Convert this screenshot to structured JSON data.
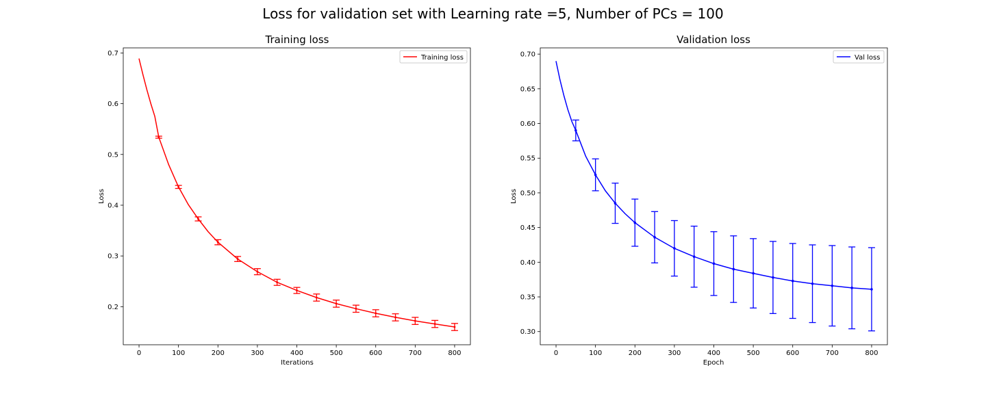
{
  "figure": {
    "suptitle": "Loss for validation set with Learning rate =5, Number of PCs = 100"
  },
  "chart_data": [
    {
      "type": "line",
      "title": "Training loss",
      "xlabel": "Iterations",
      "ylabel": "Loss",
      "xlim": [
        -40,
        840
      ],
      "ylim": [
        0.125,
        0.71
      ],
      "xticks": [
        0,
        100,
        200,
        300,
        400,
        500,
        600,
        700,
        800
      ],
      "yticks": [
        0.2,
        0.3,
        0.4,
        0.5,
        0.6,
        0.7
      ],
      "ytick_labels": [
        "0.2",
        "0.3",
        "0.4",
        "0.5",
        "0.6",
        "0.7"
      ],
      "grid": false,
      "legend": "top-right",
      "curve": {
        "x": [
          0,
          10,
          20,
          30,
          40,
          50,
          75,
          100,
          125,
          150,
          175,
          200,
          250,
          300,
          350,
          400,
          450,
          500,
          550,
          600,
          650,
          700,
          750,
          800
        ],
        "y": [
          0.689,
          0.657,
          0.627,
          0.6,
          0.575,
          0.534,
          0.48,
          0.436,
          0.401,
          0.373,
          0.348,
          0.327,
          0.294,
          0.269,
          0.248,
          0.232,
          0.218,
          0.206,
          0.196,
          0.187,
          0.179,
          0.172,
          0.166,
          0.16
        ]
      },
      "series": [
        {
          "name": "Training loss",
          "color": "#ff0000",
          "x": [
            50,
            100,
            150,
            200,
            250,
            300,
            350,
            400,
            450,
            500,
            550,
            600,
            650,
            700,
            750,
            800
          ],
          "y": [
            0.534,
            0.436,
            0.373,
            0.327,
            0.294,
            0.269,
            0.248,
            0.232,
            0.218,
            0.206,
            0.196,
            0.187,
            0.179,
            0.172,
            0.166,
            0.16
          ],
          "err": [
            0.002,
            0.003,
            0.004,
            0.005,
            0.005,
            0.006,
            0.006,
            0.006,
            0.007,
            0.007,
            0.007,
            0.007,
            0.007,
            0.007,
            0.007,
            0.007
          ]
        }
      ]
    },
    {
      "type": "line",
      "title": "Validation loss",
      "xlabel": "Epoch",
      "ylabel": "Loss",
      "xlim": [
        -40,
        840
      ],
      "ylim": [
        0.281,
        0.709
      ],
      "xticks": [
        0,
        100,
        200,
        300,
        400,
        500,
        600,
        700,
        800
      ],
      "yticks": [
        0.3,
        0.35,
        0.4,
        0.45,
        0.5,
        0.55,
        0.6,
        0.65,
        0.7
      ],
      "ytick_labels": [
        "0.30",
        "0.35",
        "0.40",
        "0.45",
        "0.50",
        "0.55",
        "0.60",
        "0.65",
        "0.70"
      ],
      "grid": false,
      "legend": "top-right",
      "curve": {
        "x": [
          0,
          10,
          20,
          30,
          40,
          50,
          75,
          100,
          125,
          150,
          175,
          200,
          250,
          300,
          350,
          400,
          450,
          500,
          550,
          600,
          650,
          700,
          750,
          800
        ],
        "y": [
          0.69,
          0.663,
          0.64,
          0.62,
          0.603,
          0.59,
          0.553,
          0.526,
          0.503,
          0.485,
          0.47,
          0.457,
          0.436,
          0.42,
          0.408,
          0.398,
          0.39,
          0.384,
          0.378,
          0.373,
          0.369,
          0.366,
          0.363,
          0.361
        ]
      },
      "series": [
        {
          "name": "Val loss",
          "color": "#0000ff",
          "x": [
            50,
            100,
            150,
            200,
            250,
            300,
            350,
            400,
            450,
            500,
            550,
            600,
            650,
            700,
            750,
            800
          ],
          "y": [
            0.59,
            0.526,
            0.485,
            0.457,
            0.436,
            0.42,
            0.408,
            0.398,
            0.39,
            0.384,
            0.378,
            0.373,
            0.369,
            0.366,
            0.363,
            0.361
          ],
          "err": [
            0.015,
            0.023,
            0.029,
            0.034,
            0.037,
            0.04,
            0.044,
            0.046,
            0.048,
            0.05,
            0.052,
            0.054,
            0.056,
            0.058,
            0.059,
            0.06
          ]
        }
      ]
    }
  ]
}
